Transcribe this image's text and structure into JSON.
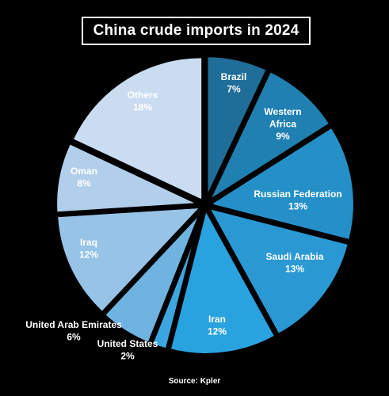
{
  "chart_data": {
    "type": "pie",
    "title": "China crude imports in 2024",
    "source": "Source: Kpler",
    "slices": [
      {
        "label": "Brazil",
        "label_lines": [
          "Brazil"
        ],
        "value": 7,
        "display": "7%",
        "color": "#1f6e99",
        "label_color": "#ffffff",
        "label_position": "inside"
      },
      {
        "label": "Western Africa",
        "label_lines": [
          "Western",
          "Africa"
        ],
        "value": 9,
        "display": "9%",
        "color": "#2080b2",
        "label_color": "#ffffff",
        "label_position": "inside"
      },
      {
        "label": "Russian Federation",
        "label_lines": [
          "Russian Federation"
        ],
        "value": 13,
        "display": "13%",
        "color": "#2590c8",
        "label_color": "#ffffff",
        "label_position": "inside"
      },
      {
        "label": "Saudi Arabia",
        "label_lines": [
          "Saudi Arabia"
        ],
        "value": 13,
        "display": "13%",
        "color": "#2a98d2",
        "label_color": "#ffffff",
        "label_position": "inside"
      },
      {
        "label": "Iran",
        "label_lines": [
          "Iran"
        ],
        "value": 12,
        "display": "12%",
        "color": "#29a2e0",
        "label_color": "#ffffff",
        "label_position": "inside"
      },
      {
        "label": "United States",
        "label_lines": [
          "United States"
        ],
        "value": 2,
        "display": "2%",
        "color": "#3ca6e0",
        "label_color": "#ffffff",
        "label_position": "outside"
      },
      {
        "label": "United Arab Emirates",
        "label_lines": [
          "United Arab Emirates"
        ],
        "value": 6,
        "display": "6%",
        "color": "#6fb3e0",
        "label_color": "#ffffff",
        "label_position": "outside"
      },
      {
        "label": "Iraq",
        "label_lines": [
          "Iraq"
        ],
        "value": 12,
        "display": "12%",
        "color": "#96c3e6",
        "label_color": "#ffffff",
        "label_position": "inside"
      },
      {
        "label": "Oman",
        "label_lines": [
          "Oman"
        ],
        "value": 8,
        "display": "8%",
        "color": "#b1cfea",
        "label_color": "#ffffff",
        "label_position": "inside"
      },
      {
        "label": "Others",
        "label_lines": [
          "Others"
        ],
        "value": 18,
        "display": "18%",
        "color": "#cadcf0",
        "label_color": "#ffffff",
        "label_position": "inside"
      }
    ],
    "start_angle": "12 o'clock",
    "direction": "clockwise",
    "legend": "none"
  }
}
